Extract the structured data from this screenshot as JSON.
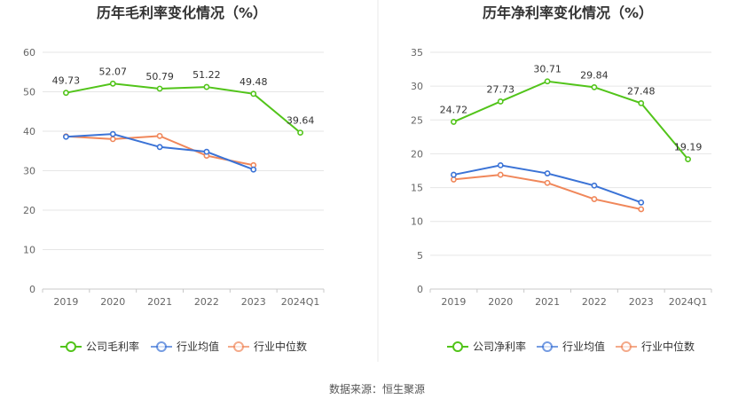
{
  "footer": {
    "source": "数据来源：恒生聚源"
  },
  "colors": {
    "company": "#52c41a",
    "avg": "#3b73d6",
    "median": "#f0875a",
    "grid": "#e6e6e6",
    "axis": "#c8c8c8",
    "divider": "#e8e8e8"
  },
  "chart_data": [
    {
      "type": "line",
      "title": "历年毛利率变化情况（%）",
      "categories": [
        "2019",
        "2020",
        "2021",
        "2022",
        "2023",
        "2024Q1"
      ],
      "ylim": [
        0,
        60
      ],
      "yticks": [
        0,
        10,
        20,
        30,
        40,
        50,
        60
      ],
      "grid": true,
      "legend_position": "bottom",
      "series": [
        {
          "name": "公司毛利率",
          "color": "#52c41a",
          "values": [
            49.73,
            52.07,
            50.79,
            51.22,
            49.48,
            39.64
          ],
          "labels": [
            "49.73",
            "52.07",
            "50.79",
            "51.22",
            "49.48",
            "39.64"
          ]
        },
        {
          "name": "行业均值",
          "color": "#3b73d6",
          "values": [
            38.6,
            39.3,
            36.0,
            34.8,
            30.3,
            null
          ]
        },
        {
          "name": "行业中位数",
          "color": "#f0875a",
          "values": [
            38.7,
            38.0,
            38.8,
            33.8,
            31.4,
            null
          ]
        }
      ]
    },
    {
      "type": "line",
      "title": "历年净利率变化情况（%）",
      "categories": [
        "2019",
        "2020",
        "2021",
        "2022",
        "2023",
        "2024Q1"
      ],
      "ylim": [
        0,
        35
      ],
      "yticks": [
        0,
        5,
        10,
        15,
        20,
        25,
        30,
        35
      ],
      "grid": true,
      "legend_position": "bottom",
      "series": [
        {
          "name": "公司净利率",
          "color": "#52c41a",
          "values": [
            24.72,
            27.73,
            30.71,
            29.84,
            27.48,
            19.19
          ],
          "labels": [
            "24.72",
            "27.73",
            "30.71",
            "29.84",
            "27.48",
            "19.19"
          ]
        },
        {
          "name": "行业均值",
          "color": "#3b73d6",
          "values": [
            16.9,
            18.3,
            17.1,
            15.3,
            12.8,
            null
          ]
        },
        {
          "name": "行业中位数",
          "color": "#f0875a",
          "values": [
            16.2,
            16.9,
            15.7,
            13.3,
            11.8,
            null
          ]
        }
      ]
    }
  ]
}
